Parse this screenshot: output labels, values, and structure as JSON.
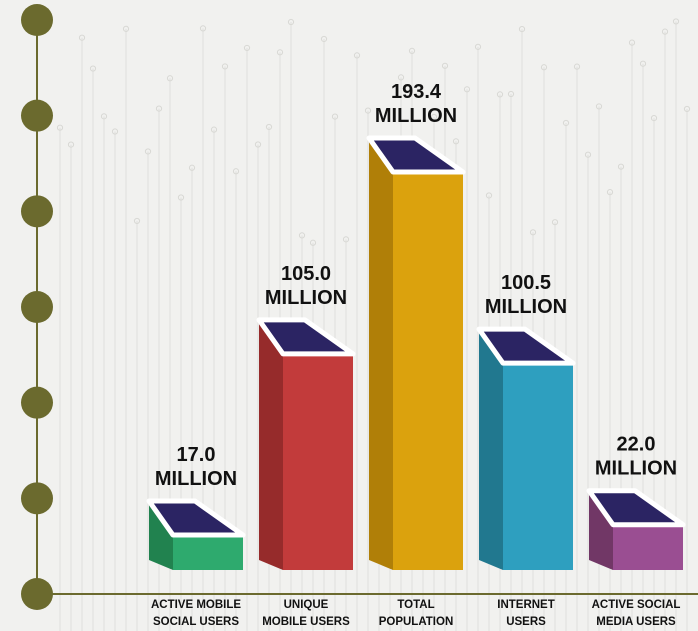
{
  "chart_data": {
    "type": "bar",
    "categories": [
      [
        "ACTIVE MOBILE",
        "SOCIAL USERS"
      ],
      [
        "UNIQUE",
        "MOBILE USERS"
      ],
      [
        "TOTAL",
        "POPULATION"
      ],
      [
        "INTERNET",
        "USERS"
      ],
      [
        "ACTIVE SOCIAL",
        "MEDIA USERS"
      ]
    ],
    "values": [
      17.0,
      105.0,
      193.4,
      100.5,
      22.0
    ],
    "value_labels": [
      [
        "17.0",
        "MILLION"
      ],
      [
        "105.0",
        "MILLION"
      ],
      [
        "193.4",
        "MILLION"
      ],
      [
        "100.5",
        "MILLION"
      ],
      [
        "22.0",
        "MILLION"
      ]
    ],
    "colors": {
      "fronts": [
        "#2eaa6e",
        "#c23b3b",
        "#dba20d",
        "#2e9fbf",
        "#9a4e92"
      ],
      "sides": [
        "#21824f",
        "#962b2b",
        "#b07f08",
        "#21788f",
        "#713766"
      ],
      "top": "#2b2463",
      "axis": "#6b6a2e",
      "axis_node": "#6b6a2e"
    },
    "title": "",
    "xlabel": "",
    "ylabel": "",
    "grid": false,
    "axis_nodes": 7
  }
}
